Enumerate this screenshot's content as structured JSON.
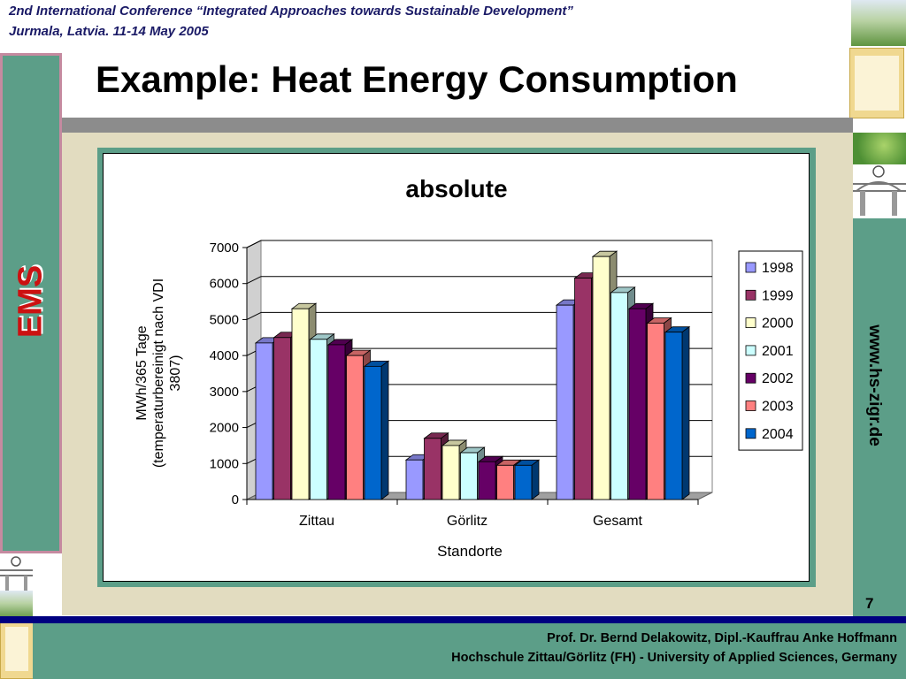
{
  "header": {
    "conference": "2nd International Conference “Integrated Approaches towards Sustainable Development”",
    "location": "Jurmala, Latvia. 11-14 May 2005"
  },
  "slide": {
    "title": "Example: Heat Energy Consumption",
    "sidebar_label": "EMS",
    "url": "www.hs-zigr.de",
    "page_number": "7"
  },
  "footer": {
    "authors": "Prof. Dr. Bernd Delakowitz, Dipl.-Kauffrau Anke Hoffmann",
    "institution": "Hochschule Zittau/Görlitz (FH) - University of Applied Sciences, Germany"
  },
  "colors": {
    "1998": "#9999ff",
    "1999": "#993366",
    "2000": "#ffffcc",
    "2001": "#ccffff",
    "2002": "#660066",
    "2003": "#ff8080",
    "2004": "#0066cc"
  },
  "chart_data": {
    "type": "bar",
    "title": "absolute",
    "xlabel": "Standorte",
    "ylabel": "MWh/365 Tage (temperaturbereinigt nach VDI 3807)",
    "ylabel_lines": [
      "MWh/365 Tage",
      "(temperaturbereinigt nach VDI",
      "3807)"
    ],
    "categories": [
      "Zittau",
      "Görlitz",
      "Gesamt"
    ],
    "ylim": [
      0,
      7000
    ],
    "yticks": [
      "0",
      "1000",
      "2000",
      "3000",
      "4000",
      "5000",
      "6000",
      "7000"
    ],
    "grid": true,
    "legend_position": "right",
    "series": [
      {
        "name": "1998",
        "values": [
          4350,
          1100,
          5400
        ]
      },
      {
        "name": "1999",
        "values": [
          4500,
          1700,
          6150
        ]
      },
      {
        "name": "2000",
        "values": [
          5300,
          1500,
          6750
        ]
      },
      {
        "name": "2001",
        "values": [
          4450,
          1300,
          5750
        ]
      },
      {
        "name": "2002",
        "values": [
          4300,
          1050,
          5300
        ]
      },
      {
        "name": "2003",
        "values": [
          4000,
          950,
          4900
        ]
      },
      {
        "name": "2004",
        "values": [
          3700,
          950,
          4650
        ]
      }
    ]
  }
}
